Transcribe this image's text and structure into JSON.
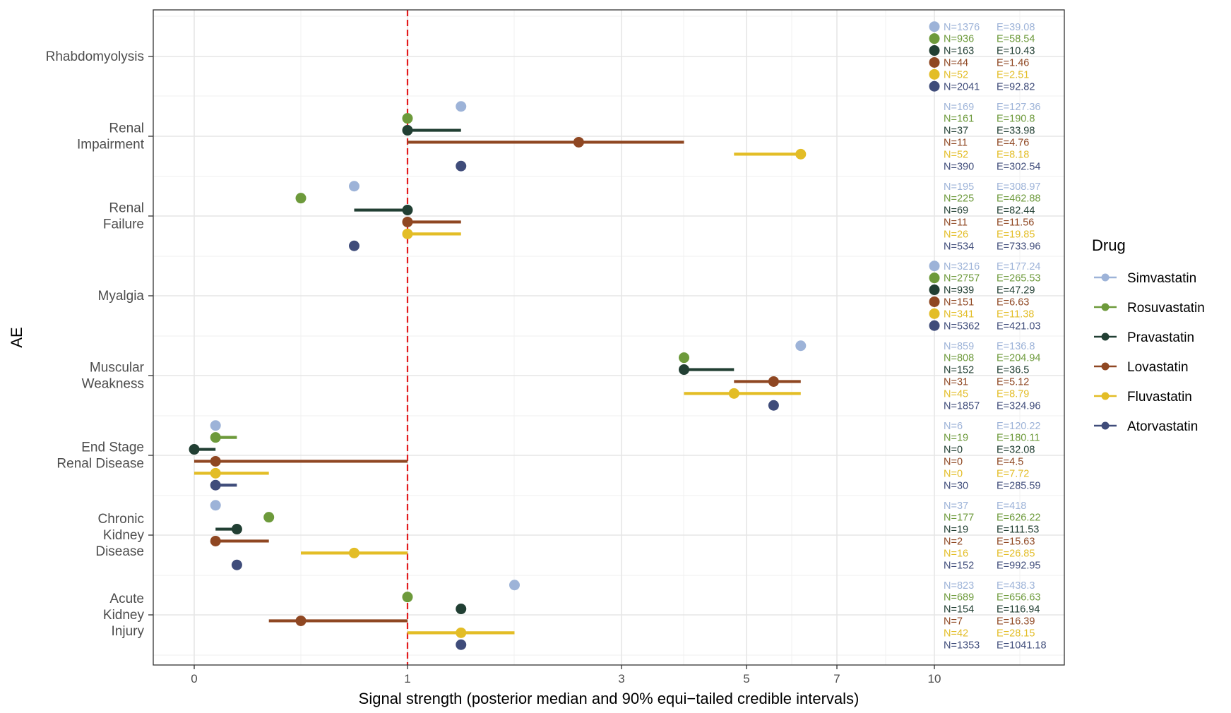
{
  "chart_data": {
    "type": "forest",
    "xlabel": "Signal strength (posterior median and 90% equi−tailed credible intervals)",
    "ylabel": "AE",
    "x_ticks": [
      0,
      1,
      3,
      5,
      7,
      10
    ],
    "reference_line": 1,
    "legend_title": "Drug",
    "drugs": [
      {
        "name": "Simvastatin",
        "color": "#9db3d8"
      },
      {
        "name": "Rosuvastatin",
        "color": "#6d9a3b"
      },
      {
        "name": "Pravastatin",
        "color": "#213f33"
      },
      {
        "name": "Lovastatin",
        "color": "#8f4722"
      },
      {
        "name": "Fluvastatin",
        "color": "#e3bd26"
      },
      {
        "name": "Atorvastatin",
        "color": "#3f4c7a"
      }
    ],
    "categories": [
      {
        "name": "Rhabdomyolysis",
        "label_lines": [
          "Rhabdomyolysis"
        ],
        "drugs": [
          {
            "N": "N=1376",
            "E": "E=39.08"
          },
          {
            "N": "N=936",
            "E": "E=58.54"
          },
          {
            "N": "N=163",
            "E": "E=10.43"
          },
          {
            "N": "N=44",
            "E": "E=1.46"
          },
          {
            "N": "N=52",
            "E": "E=2.51"
          },
          {
            "N": "N=2041",
            "E": "E=92.82"
          }
        ]
      },
      {
        "name": "Renal Impairment",
        "label_lines": [
          "Renal",
          "Impairment"
        ],
        "drugs": [
          {
            "median": 1.5,
            "N": "N=169",
            "E": "E=127.36"
          },
          {
            "median": 1.0,
            "N": "N=161",
            "E": "E=190.8"
          },
          {
            "median": 1.0,
            "lo": 1.0,
            "hi": 1.5,
            "N": "N=37",
            "E": "E=33.98"
          },
          {
            "median": 2.6,
            "lo": 1.0,
            "hi": 4.0,
            "N": "N=11",
            "E": "E=4.76"
          },
          {
            "median": 6.2,
            "lo": 4.8,
            "hi": 6.2,
            "N": "N=52",
            "E": "E=8.18"
          },
          {
            "median": 1.5,
            "N": "N=390",
            "E": "E=302.54"
          }
        ]
      },
      {
        "name": "Renal Failure",
        "label_lines": [
          "Renal",
          "Failure"
        ],
        "drugs": [
          {
            "median": 0.75,
            "N": "N=195",
            "E": "E=308.97"
          },
          {
            "median": 0.5,
            "N": "N=225",
            "E": "E=462.88"
          },
          {
            "median": 1.0,
            "lo": 0.75,
            "hi": 1.0,
            "N": "N=69",
            "E": "E=82.44"
          },
          {
            "median": 1.0,
            "lo": 1.0,
            "hi": 1.5,
            "N": "N=11",
            "E": "E=11.56"
          },
          {
            "median": 1.0,
            "lo": 1.0,
            "hi": 1.5,
            "N": "N=26",
            "E": "E=19.85"
          },
          {
            "median": 0.75,
            "N": "N=534",
            "E": "E=733.96"
          }
        ]
      },
      {
        "name": "Myalgia",
        "label_lines": [
          "Myalgia"
        ],
        "drugs": [
          {
            "N": "N=3216",
            "E": "E=177.24"
          },
          {
            "N": "N=2757",
            "E": "E=265.53"
          },
          {
            "N": "N=939",
            "E": "E=47.29"
          },
          {
            "N": "N=151",
            "E": "E=6.63"
          },
          {
            "N": "N=341",
            "E": "E=11.38"
          },
          {
            "N": "N=5362",
            "E": "E=421.03"
          }
        ]
      },
      {
        "name": "Muscular Weakness",
        "label_lines": [
          "Muscular",
          "Weakness"
        ],
        "drugs": [
          {
            "median": 6.2,
            "N": "N=859",
            "E": "E=136.8"
          },
          {
            "median": 4.0,
            "N": "N=808",
            "E": "E=204.94"
          },
          {
            "median": 4.0,
            "lo": 4.0,
            "hi": 4.8,
            "N": "N=152",
            "E": "E=36.5"
          },
          {
            "median": 5.6,
            "lo": 4.8,
            "hi": 6.2,
            "N": "N=31",
            "E": "E=5.12"
          },
          {
            "median": 4.8,
            "lo": 4.0,
            "hi": 6.2,
            "N": "N=45",
            "E": "E=8.79"
          },
          {
            "median": 5.6,
            "N": "N=1857",
            "E": "E=324.96"
          }
        ]
      },
      {
        "name": "End Stage Renal Disease",
        "label_lines": [
          "End Stage",
          "Renal Disease"
        ],
        "drugs": [
          {
            "median": 0.1,
            "N": "N=6",
            "E": "E=120.22"
          },
          {
            "median": 0.1,
            "lo": 0.1,
            "hi": 0.2,
            "N": "N=19",
            "E": "E=180.11"
          },
          {
            "median": 0.0,
            "lo": 0.0,
            "hi": 0.1,
            "N": "N=0",
            "E": "E=32.08"
          },
          {
            "median": 0.1,
            "lo": 0.0,
            "hi": 1.0,
            "N": "N=0",
            "E": "E=4.5"
          },
          {
            "median": 0.1,
            "lo": 0.0,
            "hi": 0.35,
            "N": "N=0",
            "E": "E=7.72"
          },
          {
            "median": 0.1,
            "lo": 0.1,
            "hi": 0.2,
            "N": "N=30",
            "E": "E=285.59"
          }
        ]
      },
      {
        "name": "Chronic Kidney Disease",
        "label_lines": [
          "Chronic",
          "Kidney",
          "Disease"
        ],
        "drugs": [
          {
            "median": 0.1,
            "N": "N=37",
            "E": "E=418"
          },
          {
            "median": 0.35,
            "N": "N=177",
            "E": "E=626.22"
          },
          {
            "median": 0.2,
            "lo": 0.1,
            "hi": 0.2,
            "N": "N=19",
            "E": "E=111.53"
          },
          {
            "median": 0.1,
            "lo": 0.1,
            "hi": 0.35,
            "N": "N=2",
            "E": "E=15.63"
          },
          {
            "median": 0.75,
            "lo": 0.5,
            "hi": 1.0,
            "N": "N=16",
            "E": "E=26.85"
          },
          {
            "median": 0.2,
            "N": "N=152",
            "E": "E=992.95"
          }
        ]
      },
      {
        "name": "Acute Kidney Injury",
        "label_lines": [
          "Acute",
          "Kidney",
          "Injury"
        ],
        "drugs": [
          {
            "median": 2.0,
            "N": "N=823",
            "E": "E=438.3"
          },
          {
            "median": 1.0,
            "N": "N=689",
            "E": "E=656.63"
          },
          {
            "median": 1.5,
            "N": "N=154",
            "E": "E=116.94"
          },
          {
            "median": 0.5,
            "lo": 0.35,
            "hi": 1.0,
            "N": "N=7",
            "E": "E=16.39"
          },
          {
            "median": 1.5,
            "lo": 1.0,
            "hi": 2.0,
            "N": "N=42",
            "E": "E=28.15"
          },
          {
            "median": 1.5,
            "N": "N=1353",
            "E": "E=1041.18"
          }
        ]
      }
    ]
  }
}
